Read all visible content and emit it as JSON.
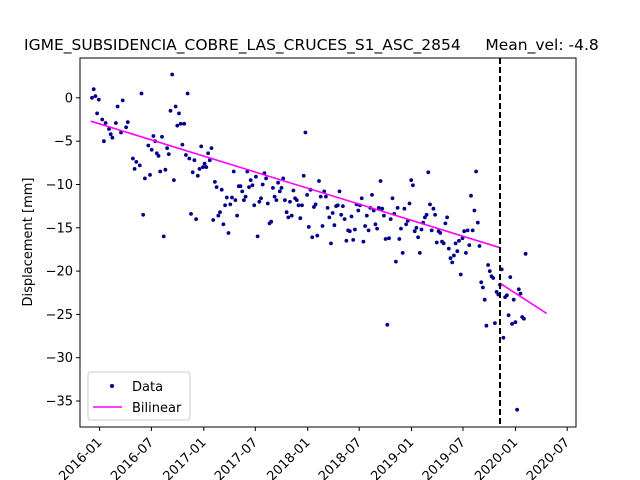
{
  "chart_data": {
    "type": "scatter",
    "title": "IGME_SUBSIDENCIA_COBRE_LAS_CRUCES_S1_ASC_2854     Mean_vel: -4.8",
    "xlabel": "",
    "ylabel": "Displacement [mm]",
    "xlim": [
      "2015-10-24",
      "2020-08-01"
    ],
    "ylim": [
      -38,
      4.6
    ],
    "x_ticks": [
      "2016-01-01",
      "2016-07-01",
      "2017-01-01",
      "2017-07-01",
      "2018-01-01",
      "2018-07-01",
      "2019-01-01",
      "2019-07-01",
      "2020-01-01",
      "2020-07-01"
    ],
    "x_tick_labels": [
      "2016-01",
      "2016-07",
      "2017-01",
      "2017-07",
      "2018-01",
      "2018-07",
      "2019-01",
      "2019-07",
      "2020-01",
      "2020-07"
    ],
    "y_ticks": [
      0,
      -5,
      -10,
      -15,
      -20,
      -25,
      -30,
      -35
    ],
    "y_tick_labels": [
      "0",
      "−5",
      "−10",
      "−15",
      "−20",
      "−25",
      "−30",
      "−35"
    ],
    "grid": false,
    "legend": {
      "placement": "lower-left",
      "entries": [
        "Data",
        "Bilinear"
      ]
    },
    "colors": {
      "data": "#00008b",
      "bilinear": "#ff00ff",
      "breakpoint": "#000000"
    },
    "breakpoint": "2019-11-08",
    "series": [
      {
        "name": "Data",
        "style": "markers",
        "points": [
          [
            "2015-12-05",
            0.0
          ],
          [
            "2015-12-11",
            1.0
          ],
          [
            "2015-12-17",
            0.2
          ],
          [
            "2015-12-23",
            -1.8
          ],
          [
            "2015-12-29",
            -0.2
          ],
          [
            "2016-01-10",
            -2.5
          ],
          [
            "2016-01-16",
            -5.0
          ],
          [
            "2016-01-22",
            -2.9
          ],
          [
            "2016-02-03",
            -3.6
          ],
          [
            "2016-02-09",
            -4.2
          ],
          [
            "2016-02-15",
            -4.6
          ],
          [
            "2016-02-27",
            -2.9
          ],
          [
            "2016-03-04",
            -1.0
          ],
          [
            "2016-03-16",
            -4.0
          ],
          [
            "2016-03-22",
            -0.3
          ],
          [
            "2016-04-03",
            -3.4
          ],
          [
            "2016-04-09",
            -2.8
          ],
          [
            "2016-04-27",
            -7.0
          ],
          [
            "2016-05-03",
            -8.2
          ],
          [
            "2016-05-09",
            -7.4
          ],
          [
            "2016-05-21",
            -7.8
          ],
          [
            "2016-05-27",
            0.5
          ],
          [
            "2016-06-02",
            -13.5
          ],
          [
            "2016-06-08",
            -9.3
          ],
          [
            "2016-06-20",
            -5.5
          ],
          [
            "2016-06-26",
            -8.9
          ],
          [
            "2016-07-02",
            -6.0
          ],
          [
            "2016-07-08",
            -4.4
          ],
          [
            "2016-07-14",
            -5.0
          ],
          [
            "2016-07-20",
            -6.4
          ],
          [
            "2016-07-26",
            -6.7
          ],
          [
            "2016-08-01",
            -8.5
          ],
          [
            "2016-08-07",
            -4.5
          ],
          [
            "2016-08-13",
            -16.0
          ],
          [
            "2016-08-19",
            -8.3
          ],
          [
            "2016-08-25",
            -5.8
          ],
          [
            "2016-08-31",
            -6.5
          ],
          [
            "2016-09-06",
            -1.5
          ],
          [
            "2016-09-12",
            2.7
          ],
          [
            "2016-09-18",
            -9.5
          ],
          [
            "2016-09-24",
            -1.0
          ],
          [
            "2016-09-30",
            -3.2
          ],
          [
            "2016-10-06",
            -1.8
          ],
          [
            "2016-10-12",
            -3.0
          ],
          [
            "2016-10-18",
            -5.4
          ],
          [
            "2016-10-24",
            -3.0
          ],
          [
            "2016-10-30",
            -6.6
          ],
          [
            "2016-11-05",
            0.5
          ],
          [
            "2016-11-11",
            -7.0
          ],
          [
            "2016-11-17",
            -13.4
          ],
          [
            "2016-11-23",
            -8.6
          ],
          [
            "2016-11-29",
            -7.2
          ],
          [
            "2016-12-05",
            -14.0
          ],
          [
            "2016-12-11",
            -9.0
          ],
          [
            "2016-12-17",
            -8.2
          ],
          [
            "2016-12-23",
            -5.6
          ],
          [
            "2016-12-29",
            -8.0
          ],
          [
            "2017-01-04",
            -7.6
          ],
          [
            "2017-01-10",
            -8.0
          ],
          [
            "2017-01-16",
            -6.4
          ],
          [
            "2017-01-22",
            -7.2
          ],
          [
            "2017-01-28",
            -5.8
          ],
          [
            "2017-02-03",
            -14.1
          ],
          [
            "2017-02-09",
            -9.7
          ],
          [
            "2017-02-15",
            -10.3
          ],
          [
            "2017-02-21",
            -13.6
          ],
          [
            "2017-02-27",
            -13.2
          ],
          [
            "2017-03-05",
            -10.6
          ],
          [
            "2017-03-11",
            -14.6
          ],
          [
            "2017-03-17",
            -12.4
          ],
          [
            "2017-03-23",
            -11.5
          ],
          [
            "2017-03-29",
            -15.6
          ],
          [
            "2017-04-04",
            -12.3
          ],
          [
            "2017-04-10",
            -11.5
          ],
          [
            "2017-04-16",
            -8.5
          ],
          [
            "2017-04-22",
            -11.8
          ],
          [
            "2017-04-28",
            -13.6
          ],
          [
            "2017-05-04",
            -10.2
          ],
          [
            "2017-05-10",
            -10.2
          ],
          [
            "2017-05-16",
            -10.8
          ],
          [
            "2017-05-22",
            -11.8
          ],
          [
            "2017-05-28",
            -11.4
          ],
          [
            "2017-06-03",
            -8.5
          ],
          [
            "2017-06-09",
            -10.3
          ],
          [
            "2017-06-15",
            -9.5
          ],
          [
            "2017-06-21",
            -10.1
          ],
          [
            "2017-06-27",
            -12.4
          ],
          [
            "2017-07-03",
            -9.1
          ],
          [
            "2017-07-09",
            -16.0
          ],
          [
            "2017-07-15",
            -12.0
          ],
          [
            "2017-07-21",
            -11.6
          ],
          [
            "2017-07-27",
            -10.0
          ],
          [
            "2017-08-02",
            -8.7
          ],
          [
            "2017-08-08",
            -9.3
          ],
          [
            "2017-08-14",
            -12.2
          ],
          [
            "2017-08-20",
            -14.5
          ],
          [
            "2017-08-26",
            -14.3
          ],
          [
            "2017-09-01",
            -10.4
          ],
          [
            "2017-09-07",
            -11.4
          ],
          [
            "2017-09-13",
            -11.8
          ],
          [
            "2017-09-19",
            -9.8
          ],
          [
            "2017-09-25",
            -10.8
          ],
          [
            "2017-10-01",
            -10.4
          ],
          [
            "2017-10-07",
            -9.3
          ],
          [
            "2017-10-13",
            -11.8
          ],
          [
            "2017-10-19",
            -13.2
          ],
          [
            "2017-10-25",
            -13.8
          ],
          [
            "2017-10-31",
            -12.0
          ],
          [
            "2017-11-06",
            -13.6
          ],
          [
            "2017-11-12",
            -10.7
          ],
          [
            "2017-11-18",
            -11.6
          ],
          [
            "2017-11-24",
            -11.8
          ],
          [
            "2017-11-30",
            -12.4
          ],
          [
            "2017-12-06",
            -13.9
          ],
          [
            "2017-12-12",
            -12.4
          ],
          [
            "2017-12-18",
            -9.0
          ],
          [
            "2017-12-24",
            -4.0
          ],
          [
            "2017-12-30",
            -11.2
          ],
          [
            "2018-01-05",
            -14.9
          ],
          [
            "2018-01-11",
            -10.6
          ],
          [
            "2018-01-17",
            -16.1
          ],
          [
            "2018-01-23",
            -12.6
          ],
          [
            "2018-01-29",
            -12.3
          ],
          [
            "2018-02-04",
            -15.9
          ],
          [
            "2018-02-10",
            -9.6
          ],
          [
            "2018-02-16",
            -11.4
          ],
          [
            "2018-02-22",
            -14.8
          ],
          [
            "2018-02-28",
            -10.8
          ],
          [
            "2018-03-06",
            -11.4
          ],
          [
            "2018-03-12",
            -12.7
          ],
          [
            "2018-03-18",
            -13.8
          ],
          [
            "2018-03-24",
            -16.8
          ],
          [
            "2018-03-30",
            -13.3
          ],
          [
            "2018-04-05",
            -14.7
          ],
          [
            "2018-04-11",
            -12.5
          ],
          [
            "2018-04-17",
            -12.4
          ],
          [
            "2018-04-23",
            -10.8
          ],
          [
            "2018-04-29",
            -13.5
          ],
          [
            "2018-05-05",
            -12.5
          ],
          [
            "2018-05-11",
            -14.0
          ],
          [
            "2018-05-17",
            -16.5
          ],
          [
            "2018-05-23",
            -15.3
          ],
          [
            "2018-05-29",
            -15.4
          ],
          [
            "2018-06-04",
            -13.7
          ],
          [
            "2018-06-10",
            -16.4
          ],
          [
            "2018-06-16",
            -15.2
          ],
          [
            "2018-06-22",
            -12.3
          ],
          [
            "2018-06-28",
            -13.0
          ],
          [
            "2018-07-04",
            -12.4
          ],
          [
            "2018-07-10",
            -11.6
          ],
          [
            "2018-07-16",
            -16.6
          ],
          [
            "2018-07-22",
            -14.8
          ],
          [
            "2018-07-28",
            -13.6
          ],
          [
            "2018-08-03",
            -15.3
          ],
          [
            "2018-08-09",
            -12.7
          ],
          [
            "2018-08-15",
            -11.2
          ],
          [
            "2018-08-21",
            -13.0
          ],
          [
            "2018-08-27",
            -14.6
          ],
          [
            "2018-09-02",
            -15.1
          ],
          [
            "2018-09-08",
            -12.7
          ],
          [
            "2018-09-14",
            -9.6
          ],
          [
            "2018-09-20",
            -12.8
          ],
          [
            "2018-09-26",
            -13.6
          ],
          [
            "2018-10-02",
            -16.3
          ],
          [
            "2018-10-08",
            -26.2
          ],
          [
            "2018-10-14",
            -16.2
          ],
          [
            "2018-10-20",
            -14.0
          ],
          [
            "2018-10-26",
            -11.6
          ],
          [
            "2018-11-01",
            -13.4
          ],
          [
            "2018-11-07",
            -18.9
          ],
          [
            "2018-11-13",
            -12.7
          ],
          [
            "2018-11-19",
            -16.3
          ],
          [
            "2018-11-25",
            -15.1
          ],
          [
            "2018-12-01",
            -17.9
          ],
          [
            "2018-12-07",
            -12.8
          ],
          [
            "2018-12-13",
            -14.6
          ],
          [
            "2018-12-19",
            -14.2
          ],
          [
            "2018-12-25",
            -12.2
          ],
          [
            "2018-12-31",
            -9.5
          ],
          [
            "2019-01-06",
            -10.1
          ],
          [
            "2019-01-12",
            -15.4
          ],
          [
            "2019-01-18",
            -15.0
          ],
          [
            "2019-01-24",
            -16.1
          ],
          [
            "2019-01-30",
            -17.9
          ],
          [
            "2019-02-05",
            -15.2
          ],
          [
            "2019-02-11",
            -14.4
          ],
          [
            "2019-02-17",
            -13.8
          ],
          [
            "2019-02-23",
            -13.5
          ],
          [
            "2019-03-01",
            -8.6
          ],
          [
            "2019-03-07",
            -12.3
          ],
          [
            "2019-03-13",
            -15.3
          ],
          [
            "2019-03-19",
            -12.8
          ],
          [
            "2019-03-25",
            -13.5
          ],
          [
            "2019-03-31",
            -16.7
          ],
          [
            "2019-04-06",
            -15.4
          ],
          [
            "2019-04-12",
            -15.6
          ],
          [
            "2019-04-18",
            -16.6
          ],
          [
            "2019-04-24",
            -16.8
          ],
          [
            "2019-04-30",
            -14.5
          ],
          [
            "2019-05-06",
            -13.8
          ],
          [
            "2019-05-12",
            -17.4
          ],
          [
            "2019-05-18",
            -18.5
          ],
          [
            "2019-05-24",
            -19.0
          ],
          [
            "2019-05-30",
            -18.2
          ],
          [
            "2019-06-05",
            -16.8
          ],
          [
            "2019-06-11",
            -17.7
          ],
          [
            "2019-06-17",
            -16.5
          ],
          [
            "2019-06-23",
            -20.4
          ],
          [
            "2019-06-29",
            -16.2
          ],
          [
            "2019-07-05",
            -15.4
          ],
          [
            "2019-07-11",
            -17.9
          ],
          [
            "2019-07-17",
            -15.3
          ],
          [
            "2019-07-23",
            -17.0
          ],
          [
            "2019-07-29",
            -11.3
          ],
          [
            "2019-08-04",
            -15.3
          ],
          [
            "2019-08-10",
            -13.0
          ],
          [
            "2019-08-16",
            -8.5
          ],
          [
            "2019-08-22",
            -14.4
          ],
          [
            "2019-08-28",
            -17.1
          ],
          [
            "2019-09-03",
            -21.3
          ],
          [
            "2019-09-09",
            -21.9
          ],
          [
            "2019-09-15",
            -23.3
          ],
          [
            "2019-09-21",
            -26.3
          ],
          [
            "2019-09-27",
            -19.3
          ],
          [
            "2019-10-03",
            -20.0
          ],
          [
            "2019-10-09",
            -20.6
          ],
          [
            "2019-10-15",
            -20.8
          ],
          [
            "2019-10-21",
            -26.0
          ],
          [
            "2019-10-27",
            -22.4
          ],
          [
            "2019-11-02",
            -22.7
          ],
          [
            "2019-11-08",
            -21.6
          ],
          [
            "2019-11-14",
            -19.8
          ],
          [
            "2019-11-20",
            -27.7
          ],
          [
            "2019-11-26",
            -23.0
          ],
          [
            "2019-12-02",
            -22.8
          ],
          [
            "2019-12-08",
            -25.1
          ],
          [
            "2019-12-14",
            -20.7
          ],
          [
            "2019-12-20",
            -26.1
          ],
          [
            "2019-12-26",
            -23.3
          ],
          [
            "2020-01-01",
            -25.9
          ],
          [
            "2020-01-07",
            -36.0
          ],
          [
            "2020-01-13",
            -22.1
          ],
          [
            "2020-01-19",
            -22.6
          ],
          [
            "2020-01-25",
            -25.3
          ],
          [
            "2020-01-31",
            -25.5
          ],
          [
            "2020-02-06",
            -18.0
          ]
        ]
      },
      {
        "name": "Bilinear",
        "style": "line",
        "segments": [
          [
            [
              "2015-12-01",
              -2.7
            ],
            [
              "2019-11-08",
              -17.3
            ]
          ],
          [
            [
              "2019-11-08",
              -21.4
            ],
            [
              "2020-04-20",
              -24.9
            ]
          ]
        ]
      }
    ]
  }
}
